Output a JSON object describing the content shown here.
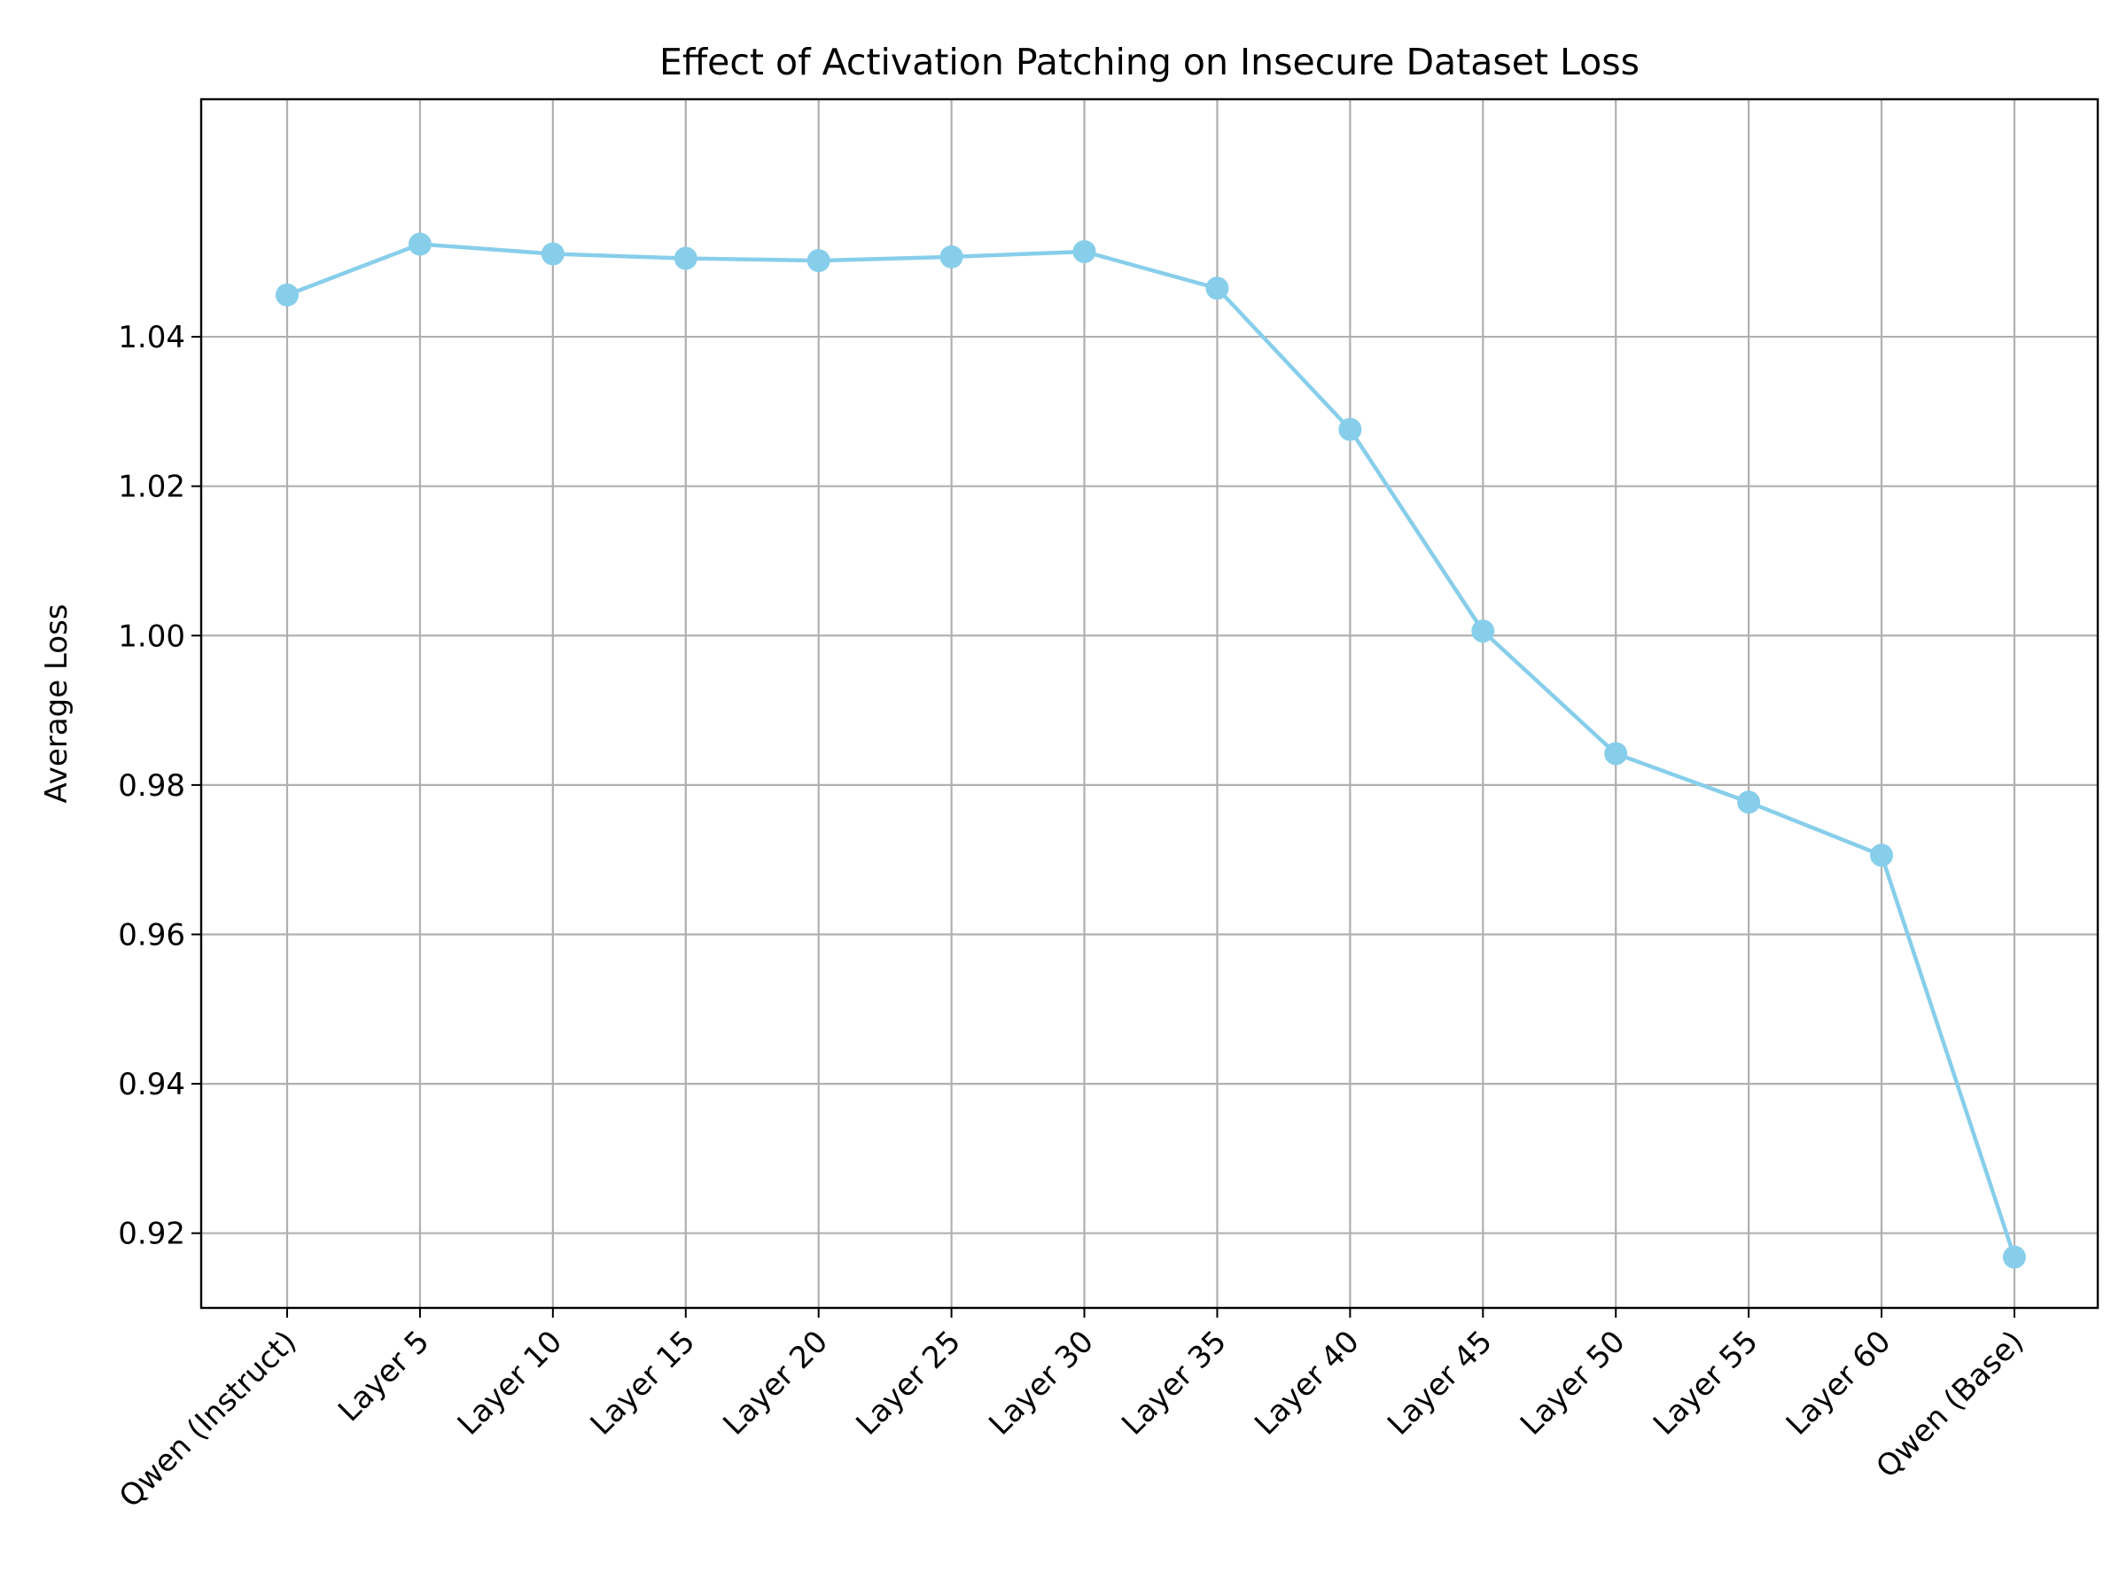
{
  "chart_data": {
    "type": "line",
    "title": "Effect of Activation Patching on Insecure Dataset Loss",
    "xlabel": "",
    "ylabel": "Average Loss",
    "categories": [
      "Qwen (Instruct)",
      "Layer 5",
      "Layer 10",
      "Layer 15",
      "Layer 20",
      "Layer 25",
      "Layer 30",
      "Layer 35",
      "Layer 40",
      "Layer 45",
      "Layer 50",
      "Layer 55",
      "Layer 60",
      "Qwen (Base)"
    ],
    "series": [
      {
        "values": [
          1.0456,
          1.0524,
          1.0511,
          1.0505,
          1.0502,
          1.0507,
          1.0514,
          1.0465,
          1.0276,
          1.0006,
          0.9842,
          0.9777,
          0.9706,
          0.9168
        ]
      }
    ],
    "yticks": [
      "0.92",
      "0.94",
      "0.96",
      "0.98",
      "1.00",
      "1.02",
      "1.04"
    ],
    "ylim": [
      0.91,
      1.0718
    ],
    "grid": true,
    "line_color": "#87ceeb",
    "marker": "circle"
  }
}
